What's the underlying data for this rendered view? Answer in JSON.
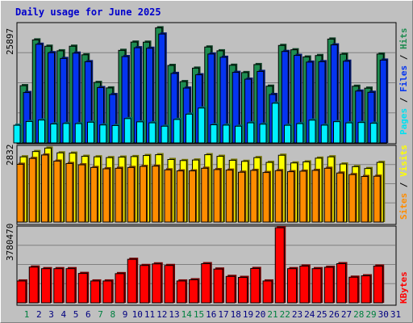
{
  "chart_data": [
    {
      "type": "bar",
      "title": "Daily usage for June 2025",
      "ymax_label": "25897",
      "ylim": [
        0,
        25897
      ],
      "right_labels": [
        "Pages",
        "/",
        "Files",
        "/",
        "Hits"
      ],
      "categories": [
        "1",
        "2",
        "3",
        "4",
        "5",
        "6",
        "7",
        "8",
        "9",
        "10",
        "11",
        "12",
        "13",
        "14",
        "15",
        "16",
        "17",
        "18",
        "19",
        "20",
        "21",
        "22",
        "23",
        "24",
        "25",
        "26",
        "27",
        "28",
        "29",
        "30",
        "31"
      ],
      "series": [
        {
          "name": "Hits",
          "values": [
            12500,
            22480,
            21100,
            20100,
            21100,
            19230,
            13200,
            12000,
            20200,
            22000,
            21980,
            25120,
            16910,
            13380,
            16320,
            20930,
            20100,
            16950,
            15350,
            17100,
            12380,
            21270,
            20320,
            18750,
            19070,
            22660,
            19360,
            12370,
            11950,
            19390,
            0
          ]
        },
        {
          "name": "Files",
          "values": [
            11000,
            21530,
            19690,
            18430,
            19600,
            17730,
            12080,
            10560,
            18840,
            20770,
            20660,
            23760,
            15170,
            11970,
            14870,
            19400,
            18690,
            15400,
            13910,
            15600,
            10570,
            19960,
            19100,
            17640,
            17730,
            21390,
            17830,
            11320,
            11050,
            18070,
            0
          ]
        },
        {
          "name": "Pages",
          "values": [
            3860,
            4680,
            4990,
            4140,
            4250,
            4210,
            4520,
            3920,
            3800,
            5310,
            4600,
            4390,
            3650,
            5120,
            6280,
            7610,
            3960,
            3880,
            3650,
            4390,
            4090,
            8660,
            3850,
            4210,
            4970,
            3880,
            4640,
            4380,
            4460,
            4290,
            0
          ]
        }
      ],
      "colors": {
        "Hits": "#1e8c50",
        "Files": "#0434f0",
        "Pages": "#00f0ff"
      }
    },
    {
      "type": "bar",
      "ymax_label": "2832",
      "ylim": [
        0,
        2832
      ],
      "right_labels": [
        "Sites",
        "/",
        "Visits"
      ],
      "categories": [
        "1",
        "2",
        "3",
        "4",
        "5",
        "6",
        "7",
        "8",
        "9",
        "10",
        "11",
        "12",
        "13",
        "14",
        "15",
        "16",
        "17",
        "18",
        "19",
        "20",
        "21",
        "22",
        "23",
        "24",
        "25",
        "26",
        "27",
        "28",
        "29",
        "30",
        "31"
      ],
      "series": [
        {
          "name": "Visits",
          "values": [
            2460,
            2660,
            2790,
            2610,
            2600,
            2480,
            2460,
            2430,
            2450,
            2470,
            2510,
            2540,
            2360,
            2320,
            2340,
            2540,
            2480,
            2330,
            2290,
            2430,
            2250,
            2520,
            2230,
            2270,
            2410,
            2460,
            2190,
            2090,
            2020,
            2250,
            0
          ]
        },
        {
          "name": "Sites",
          "values": [
            2180,
            2400,
            2530,
            2300,
            2210,
            2160,
            2060,
            2010,
            2030,
            2060,
            2100,
            2110,
            1970,
            1930,
            1930,
            2030,
            1980,
            1960,
            1880,
            1950,
            1870,
            1940,
            1900,
            1920,
            1950,
            2030,
            1850,
            1790,
            1720,
            1730,
            0
          ]
        }
      ],
      "colors": {
        "Visits": "#ffff00",
        "Sites": "#ff8c00"
      }
    },
    {
      "type": "bar",
      "ymax_label": "3780470",
      "ylim": [
        0,
        3780470
      ],
      "right_labels": [
        "KBytes"
      ],
      "categories": [
        "1",
        "2",
        "3",
        "4",
        "5",
        "6",
        "7",
        "8",
        "9",
        "10",
        "11",
        "12",
        "13",
        "14",
        "15",
        "16",
        "17",
        "18",
        "19",
        "20",
        "21",
        "22",
        "23",
        "24",
        "25",
        "26",
        "27",
        "28",
        "29",
        "30",
        "31"
      ],
      "series": [
        {
          "name": "KBytes",
          "values": [
            1100000,
            1800000,
            1720000,
            1720000,
            1720000,
            1480000,
            1100000,
            1100000,
            1470000,
            2190000,
            1880000,
            1960000,
            1880000,
            1100000,
            1160000,
            1970000,
            1700000,
            1330000,
            1280000,
            1730000,
            1100000,
            3780470,
            1720000,
            1850000,
            1720000,
            1790000,
            1970000,
            1290000,
            1360000,
            1850000,
            0
          ]
        }
      ],
      "colors": {
        "KBytes": "#ff0000"
      }
    }
  ],
  "weekend_days": [
    "1",
    "7",
    "8",
    "14",
    "15",
    "21",
    "22",
    "28",
    "29"
  ]
}
